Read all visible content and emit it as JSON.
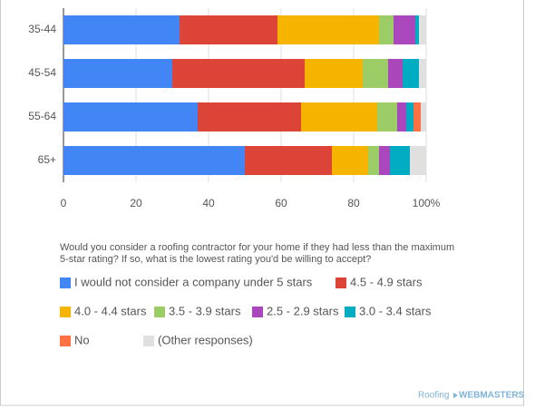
{
  "chart_data": {
    "type": "bar",
    "orientation": "horizontal",
    "stacked": true,
    "categories": [
      "35-44",
      "45-54",
      "55-64",
      "65+"
    ],
    "series": [
      {
        "name": "I would not consider a company under 5 stars",
        "color": "#4285f4",
        "values": [
          32,
          30,
          37,
          50
        ]
      },
      {
        "name": "4.5 - 4.9 stars",
        "color": "#db4437",
        "values": [
          27,
          36.5,
          28.5,
          24
        ]
      },
      {
        "name": "4.0 - 4.4 stars",
        "color": "#f4b400",
        "values": [
          28,
          16,
          21,
          10
        ]
      },
      {
        "name": "3.5 - 3.9 stars",
        "color": "#9ccc65",
        "values": [
          4,
          7,
          5.5,
          3
        ]
      },
      {
        "name": "2.5 - 2.9 stars",
        "color": "#ab47bc",
        "values": [
          6,
          4,
          2.5,
          3
        ]
      },
      {
        "name": "3.0 - 3.4 stars",
        "color": "#00acc1",
        "values": [
          1,
          4.5,
          2,
          5.5
        ]
      },
      {
        "name": "No",
        "color": "#ff7043",
        "values": [
          0,
          0,
          2,
          0
        ]
      },
      {
        "name": "(Other responses)",
        "color": "#e0e0e0",
        "values": [
          2,
          2,
          1.5,
          4.5
        ]
      }
    ],
    "xlim": [
      0,
      100
    ],
    "xticks": [
      0,
      20,
      40,
      60,
      80,
      {
        "value": 100,
        "label": "100%"
      }
    ],
    "grid": true,
    "legend_title": "Would you consider a roofing contractor for your home if they had less than the maximum 5-star rating? If so, what is the lowest rating you'd be willing to accept?",
    "watermark": {
      "brand": "Roofing",
      "name": "WEBMASTERS"
    }
  }
}
